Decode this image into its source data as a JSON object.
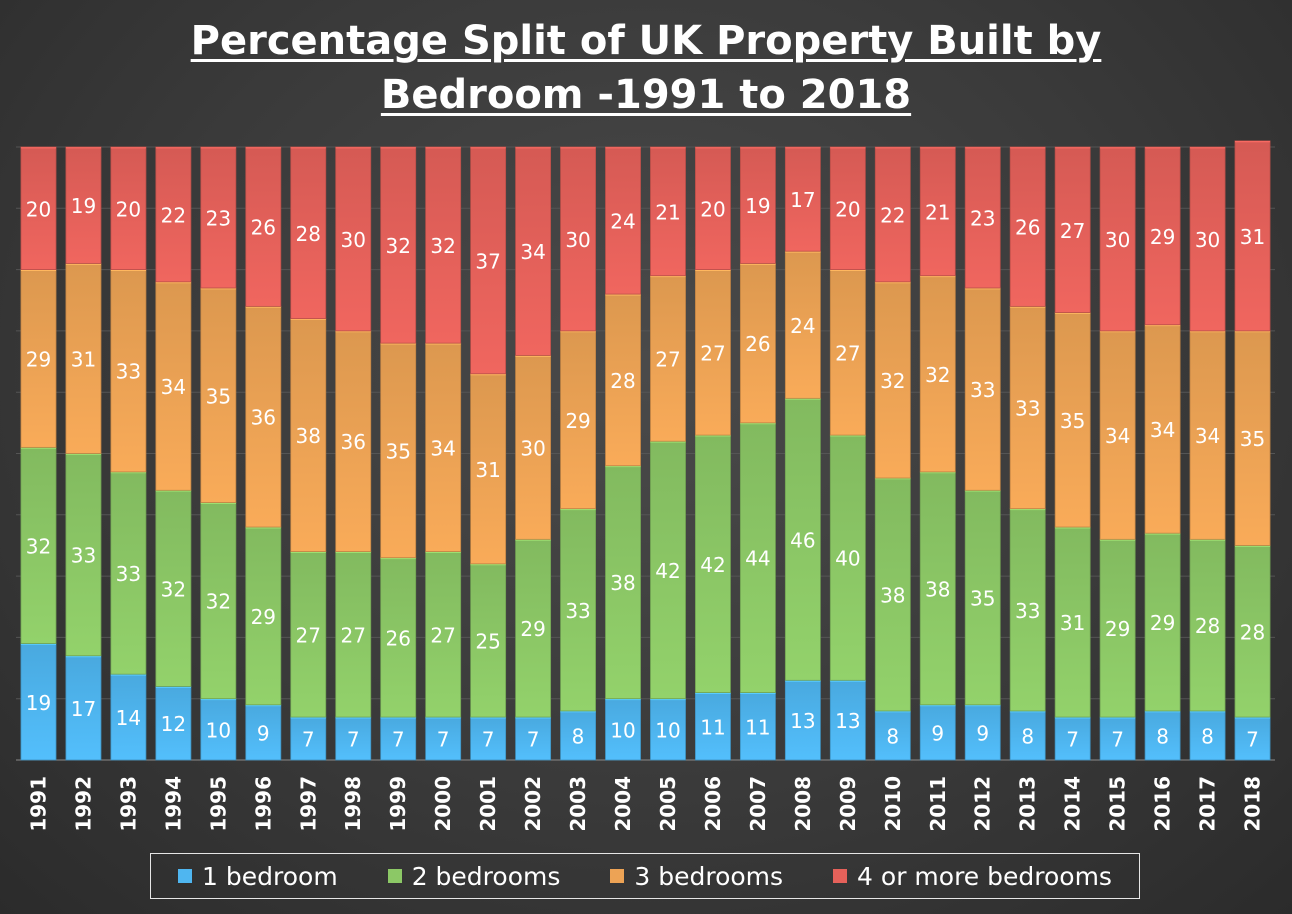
{
  "chart_data": {
    "type": "bar",
    "stacked": true,
    "title_line1": "Percentage Split of UK Property Built by",
    "title_line2": "Bedroom -1991 to 2018",
    "xlabel": "",
    "ylabel": "",
    "ylim": [
      0,
      100
    ],
    "legend_position": "bottom",
    "categories": [
      "1991",
      "1992",
      "1993",
      "1994",
      "1995",
      "1996",
      "1997",
      "1998",
      "1999",
      "2000",
      "2001",
      "2002",
      "2003",
      "2004",
      "2005",
      "2006",
      "2007",
      "2008",
      "2009",
      "2010",
      "2011",
      "2012",
      "2013",
      "2014",
      "2015",
      "2016",
      "2017",
      "2018"
    ],
    "series": [
      {
        "name": "1 bedroom",
        "color": "#4fb6f0",
        "values": [
          19,
          17,
          14,
          12,
          10,
          9,
          7,
          7,
          7,
          7,
          7,
          7,
          8,
          10,
          10,
          11,
          11,
          13,
          13,
          8,
          9,
          9,
          8,
          7,
          7,
          8,
          8,
          7
        ]
      },
      {
        "name": "2 bedrooms",
        "color": "#8cc866",
        "values": [
          32,
          33,
          33,
          32,
          32,
          29,
          27,
          27,
          26,
          27,
          25,
          29,
          33,
          38,
          42,
          42,
          44,
          46,
          40,
          38,
          38,
          35,
          33,
          31,
          29,
          29,
          28,
          28
        ]
      },
      {
        "name": "3 bedrooms",
        "color": "#eda355",
        "values": [
          29,
          31,
          33,
          34,
          35,
          36,
          38,
          36,
          35,
          34,
          31,
          30,
          29,
          28,
          27,
          27,
          26,
          24,
          27,
          32,
          32,
          33,
          33,
          35,
          34,
          34,
          34,
          35
        ]
      },
      {
        "name": "4 or more bedrooms",
        "color": "#e5615a",
        "values": [
          20,
          19,
          20,
          22,
          23,
          26,
          28,
          30,
          32,
          32,
          37,
          34,
          30,
          24,
          21,
          20,
          19,
          17,
          20,
          22,
          21,
          23,
          26,
          27,
          30,
          29,
          30,
          31
        ]
      }
    ]
  }
}
